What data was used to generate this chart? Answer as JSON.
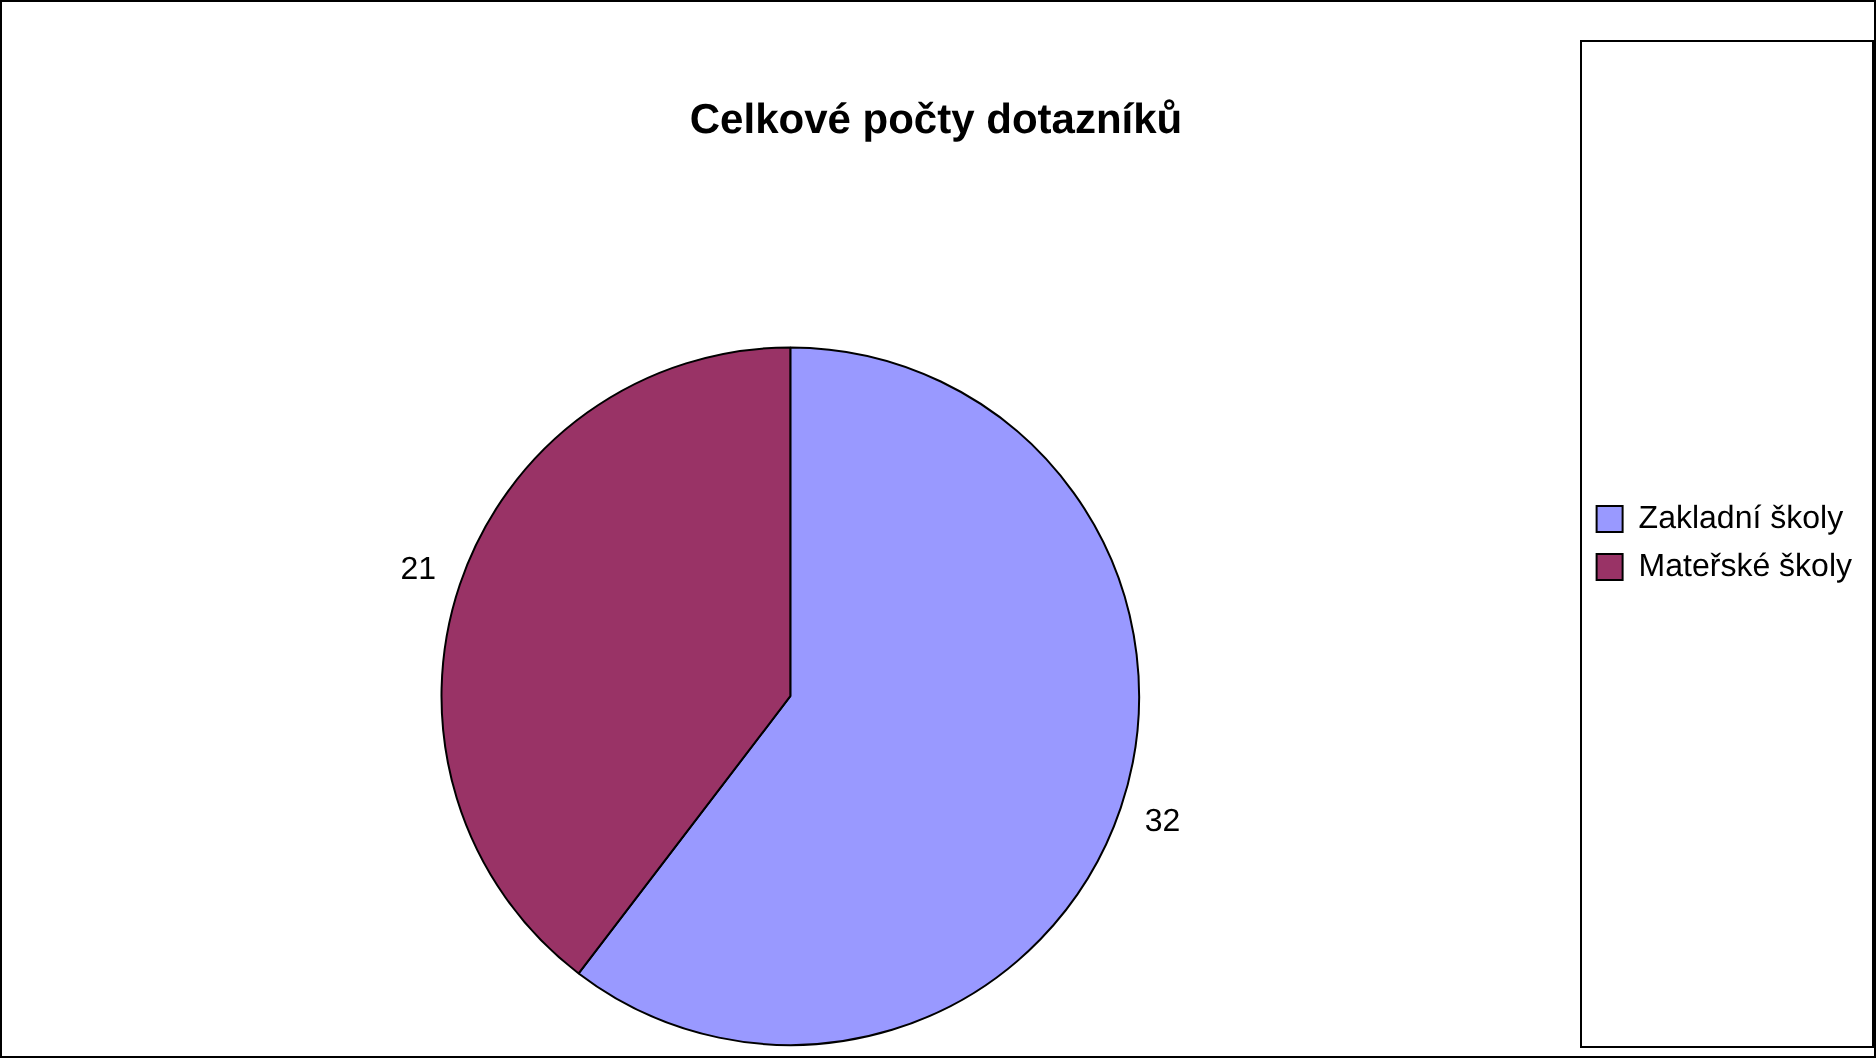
{
  "chart_data": {
    "type": "pie",
    "title": "Celkové počty dotazníků",
    "categories": [
      "Zakladní školy",
      "Mateřské školy"
    ],
    "values": [
      32,
      21
    ],
    "colors": [
      "#9999ff",
      "#993366"
    ],
    "data_labels": true,
    "legend": "right"
  }
}
